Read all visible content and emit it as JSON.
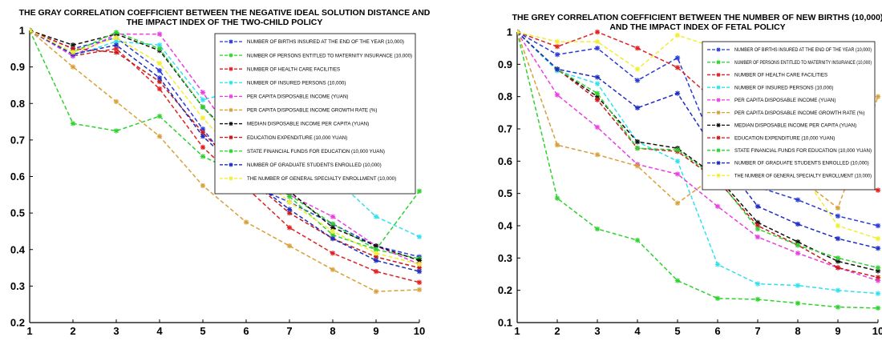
{
  "chart_data": [
    {
      "type": "line",
      "title": "THE GRAY CORRELATION COEFFICIENT BETWEEN THE NEGATIVE IDEAL SOLUTION DISTANCE AND THE IMPACT INDEX OF THE TWO-CHILD POLICY",
      "title_lines": [
        "THE GRAY CORRELATION COEFFICIENT BETWEEN THE NEGATIVE IDEAL SOLUTION DISTANCE AND",
        "THE IMPACT INDEX OF THE TWO-CHILD POLICY"
      ],
      "xlabel": "",
      "ylabel": "",
      "x": [
        1,
        2,
        3,
        4,
        5,
        6,
        7,
        8,
        9,
        10
      ],
      "xlim": [
        1,
        10
      ],
      "ylim": [
        0.2,
        1.0
      ],
      "yticks": [
        0.2,
        0.3,
        0.4,
        0.5,
        0.6,
        0.7,
        0.8,
        0.9,
        1
      ],
      "grid": false,
      "legend_position": "top-right",
      "series": [
        {
          "name": "NUMBER OF BIRTHS INSURED AT THE END OF THE YEAR (10,000)",
          "color": "#2a3bd4",
          "values": [
            1,
            0.95,
            0.98,
            0.89,
            0.73,
            0.58,
            0.53,
            0.47,
            0.41,
            0.38
          ]
        },
        {
          "name": "NUMBER OF PERSONS ENTITLED TO MATERNITY INSURANCE (10,000)",
          "color": "#2ed12e",
          "values": [
            1,
            0.745,
            0.725,
            0.765,
            0.655,
            0.6,
            0.55,
            0.47,
            0.4,
            0.375
          ]
        },
        {
          "name": "NUMBER OF HEALTH CARE FACILITIES",
          "color": "#e02020",
          "values": [
            1,
            0.93,
            0.95,
            0.84,
            0.68,
            0.57,
            0.46,
            0.39,
            0.34,
            0.31
          ]
        },
        {
          "name": "NUMBER OF INSURED PERSONS (10,000)",
          "color": "#33e0f0",
          "values": [
            1,
            0.93,
            0.97,
            0.96,
            0.81,
            0.84,
            0.72,
            0.6,
            0.49,
            0.435
          ]
        },
        {
          "name": "PER CAPITA DISPOSABLE INCOME (YUAN)",
          "color": "#e83ee0",
          "values": [
            1,
            0.93,
            0.99,
            0.99,
            0.83,
            0.66,
            0.55,
            0.49,
            0.41,
            0.36
          ]
        },
        {
          "name": "PER CAPITA DISPOSABLE INCOME GROWTH RATE (%)",
          "color": "#d8a038",
          "values": [
            1,
            0.9,
            0.805,
            0.71,
            0.575,
            0.475,
            0.41,
            0.345,
            0.285,
            0.29
          ]
        },
        {
          "name": "MEDIAN DISPOSABLE INCOME PER CAPITA (YUAN)",
          "color": "#111111",
          "values": [
            1,
            0.96,
            0.99,
            0.945,
            0.79,
            0.67,
            0.56,
            0.46,
            0.41,
            0.37
          ]
        },
        {
          "name": "EDUCATION EXPENDITURE (10,000 YUAN)",
          "color": "#c81818",
          "values": [
            1,
            0.95,
            0.94,
            0.86,
            0.72,
            0.6,
            0.5,
            0.43,
            0.38,
            0.35
          ]
        },
        {
          "name": "STATE FINANCIAL FUNDS FOR EDUCATION (10,000 YUAN)",
          "color": "#30d030",
          "values": [
            1,
            0.94,
            0.995,
            0.95,
            0.79,
            0.66,
            0.545,
            0.44,
            0.4,
            0.56
          ]
        },
        {
          "name": "NUMBER OF GRADUATE STUDENTS ENROLLED (10,000)",
          "color": "#1c2cc0",
          "values": [
            1,
            0.935,
            0.96,
            0.87,
            0.71,
            0.6,
            0.51,
            0.43,
            0.37,
            0.34
          ]
        },
        {
          "name": "THE NUMBER OF GENERAL SPECIALTY ENROLLMENT (10,000)",
          "color": "#f2ee30",
          "values": [
            1,
            0.94,
            0.98,
            0.91,
            0.76,
            0.63,
            0.53,
            0.45,
            0.39,
            0.36
          ]
        }
      ]
    },
    {
      "type": "line",
      "title": "THE GREY CORRELATION COEFFICIENT BETWEEN THE NUMBER OF NEW BIRTHS (10,000) AND THE IMPACT INDEX OF FETAL POLICY",
      "title_lines": [
        "THE GREY CORRELATION COEFFICIENT BETWEEN THE NUMBER OF NEW BIRTHS (10,000)",
        "AND THE IMPACT INDEX OF FETAL POLICY"
      ],
      "xlabel": "",
      "ylabel": "",
      "x": [
        1,
        2,
        3,
        4,
        5,
        6,
        7,
        8,
        9,
        10
      ],
      "xlim": [
        1,
        10
      ],
      "ylim": [
        0.1,
        1.0
      ],
      "yticks": [
        0.1,
        0.2,
        0.3,
        0.4,
        0.5,
        0.6,
        0.7,
        0.8,
        0.9,
        1
      ],
      "grid": false,
      "legend_position": "top-right",
      "series": [
        {
          "name": "NUMBER OF BIRTHS INSURED AT THE END OF THE YEAR (10,000)",
          "color": "#2a3bd4",
          "values": [
            1,
            0.93,
            0.95,
            0.85,
            0.92,
            0.62,
            0.52,
            0.48,
            0.43,
            0.4
          ]
        },
        {
          "name": "NUMBER OF PERSONS ENTITLED TO MATERNITY INSURANCE (10,000)",
          "color": "#2ed12e",
          "values": [
            1,
            0.485,
            0.39,
            0.355,
            0.23,
            0.175,
            0.172,
            0.16,
            0.148,
            0.145
          ]
        },
        {
          "name": "NUMBER OF HEALTH CARE FACILITIES",
          "color": "#e02020",
          "values": [
            1,
            0.955,
            1.0,
            0.95,
            0.89,
            0.78,
            0.66,
            0.58,
            0.54,
            0.51
          ]
        },
        {
          "name": "NUMBER OF INSURED PERSONS (10,000)",
          "color": "#33e0f0",
          "values": [
            1,
            0.88,
            0.84,
            0.66,
            0.6,
            0.28,
            0.22,
            0.215,
            0.2,
            0.19
          ]
        },
        {
          "name": "PER CAPITA DISPOSABLE INCOME (YUAN)",
          "color": "#e83ee0",
          "values": [
            1,
            0.805,
            0.705,
            0.59,
            0.56,
            0.46,
            0.365,
            0.315,
            0.27,
            0.23
          ]
        },
        {
          "name": "PER CAPITA DISPOSABLE INCOME GROWTH RATE (%)",
          "color": "#d8a038",
          "values": [
            1,
            0.65,
            0.62,
            0.585,
            0.47,
            0.56,
            0.61,
            0.55,
            0.455,
            0.8
          ]
        },
        {
          "name": "MEDIAN DISPOSABLE INCOME PER CAPITA (YUAN)",
          "color": "#111111",
          "values": [
            1,
            0.885,
            0.8,
            0.66,
            0.64,
            0.55,
            0.41,
            0.35,
            0.29,
            0.26
          ]
        },
        {
          "name": "EDUCATION EXPENDITURE (10,000 YUAN)",
          "color": "#c81818",
          "values": [
            1,
            0.885,
            0.79,
            0.64,
            0.63,
            0.54,
            0.4,
            0.34,
            0.27,
            0.24
          ]
        },
        {
          "name": "STATE FINANCIAL FUNDS FOR EDUCATION (10,000 YUAN)",
          "color": "#30d030",
          "values": [
            1,
            0.885,
            0.81,
            0.64,
            0.635,
            0.545,
            0.39,
            0.34,
            0.3,
            0.27
          ]
        },
        {
          "name": "NUMBER OF GRADUATE STUDENTS ENROLLED (10,000)",
          "color": "#1c2cc0",
          "values": [
            1,
            0.885,
            0.86,
            0.765,
            0.81,
            0.62,
            0.46,
            0.405,
            0.36,
            0.33
          ]
        },
        {
          "name": "THE NUMBER OF GENERAL SPECIALTY ENROLLMENT (10,000)",
          "color": "#f2ee30",
          "values": [
            1,
            0.97,
            0.97,
            0.885,
            0.99,
            0.95,
            0.66,
            0.58,
            0.4,
            0.36
          ]
        }
      ]
    }
  ]
}
